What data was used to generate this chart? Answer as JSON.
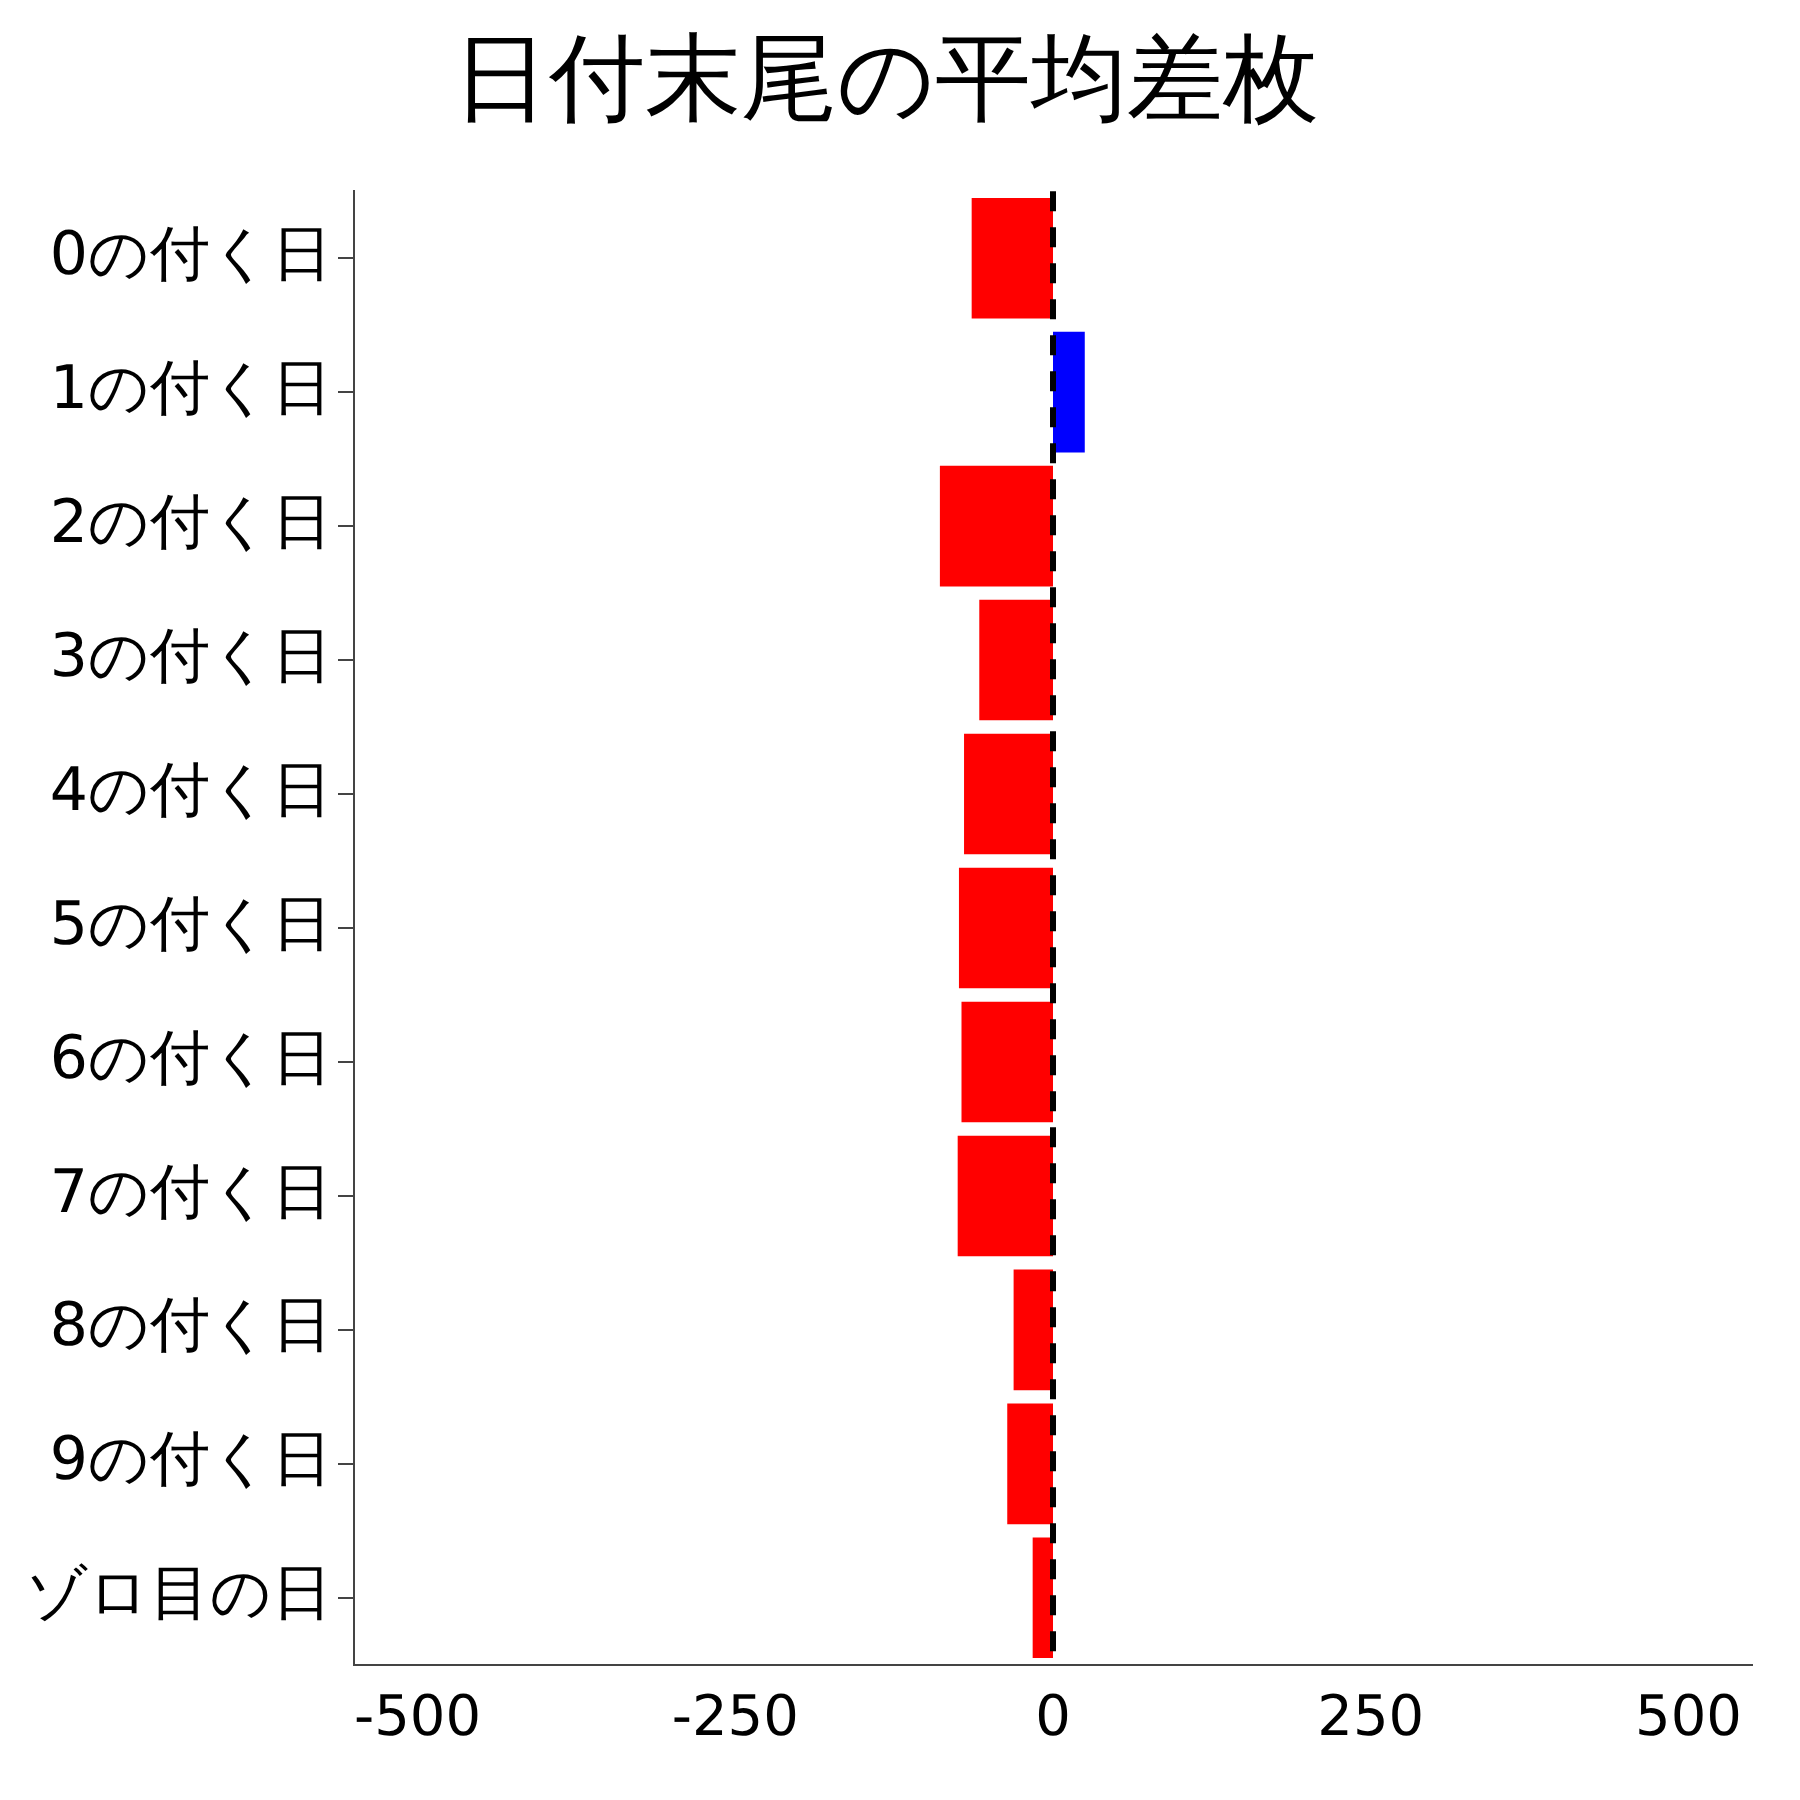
{
  "chart_data": {
    "type": "bar",
    "orientation": "horizontal",
    "title": "日付末尾の平均差枚",
    "categories": [
      "0の付く日",
      "1の付く日",
      "2の付く日",
      "3の付く日",
      "4の付く日",
      "5の付く日",
      "6の付く日",
      "7の付く日",
      "8の付く日",
      "9の付く日",
      "ゾロ目の日"
    ],
    "values": [
      -64,
      25,
      -89,
      -58,
      -70,
      -74,
      -72,
      -75,
      -31,
      -36,
      -16
    ],
    "colors": [
      "#ff0000",
      "#0000ff",
      "#ff0000",
      "#ff0000",
      "#ff0000",
      "#ff0000",
      "#ff0000",
      "#ff0000",
      "#ff0000",
      "#ff0000",
      "#ff0000"
    ],
    "xlim": [
      -550,
      550
    ],
    "xticks": [
      -500,
      -250,
      0,
      250,
      500
    ],
    "ref_lines": [
      {
        "axis": "x",
        "value": 0,
        "color": "#000000",
        "line_style": "dashed"
      }
    ],
    "grid": false,
    "legend": false
  }
}
